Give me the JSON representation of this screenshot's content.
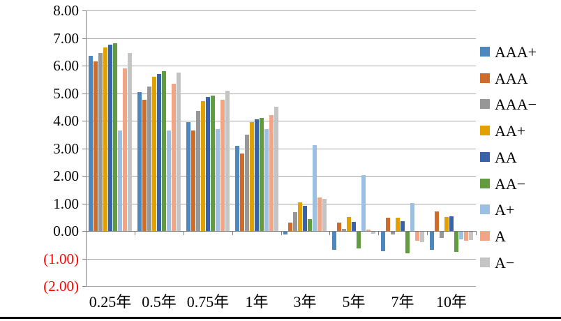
{
  "chart_data": {
    "type": "bar",
    "title": "",
    "categories": [
      "0.25年",
      "0.5年",
      "0.75年",
      "1年",
      "3年",
      "5年",
      "7年",
      "10年"
    ],
    "series": [
      {
        "name": "AAA+",
        "color": "#4E87BD",
        "values": [
          6.35,
          5.05,
          3.95,
          3.1,
          -0.1,
          -0.65,
          -0.7,
          -0.65
        ]
      },
      {
        "name": "AAA",
        "color": "#CE6C2E",
        "values": [
          6.15,
          4.75,
          3.65,
          2.8,
          0.3,
          0.3,
          0.48,
          0.7
        ]
      },
      {
        "name": "AAA−",
        "color": "#979797",
        "values": [
          6.45,
          5.25,
          4.35,
          3.5,
          0.68,
          0.08,
          -0.1,
          -0.22
        ]
      },
      {
        "name": "AA+",
        "color": "#E3A100",
        "values": [
          6.65,
          5.6,
          4.7,
          3.95,
          1.05,
          0.5,
          0.48,
          0.5
        ]
      },
      {
        "name": "AA",
        "color": "#3A62A8",
        "values": [
          6.75,
          5.7,
          4.85,
          4.05,
          0.92,
          0.33,
          0.35,
          0.53
        ]
      },
      {
        "name": "AA−",
        "color": "#639C40",
        "values": [
          6.8,
          5.8,
          4.9,
          4.1,
          0.43,
          -0.62,
          -0.78,
          -0.73
        ]
      },
      {
        "name": "A+",
        "color": "#9BC0E2",
        "values": [
          3.65,
          3.65,
          3.7,
          3.7,
          3.11,
          2.03,
          1.0,
          -0.28
        ]
      },
      {
        "name": "A",
        "color": "#F1A586",
        "values": [
          5.9,
          5.35,
          4.75,
          4.2,
          1.22,
          0.05,
          -0.33,
          -0.33
        ]
      },
      {
        "name": "A−",
        "color": "#C4C4C4",
        "values": [
          6.45,
          5.75,
          5.1,
          4.5,
          1.16,
          -0.08,
          -0.38,
          -0.3
        ]
      }
    ],
    "xlabel": "",
    "ylabel": "",
    "y_axis": {
      "min": -2,
      "max": 8,
      "step": 1,
      "tick_labels": [
        "8.00",
        "7.00",
        "6.00",
        "5.00",
        "4.00",
        "3.00",
        "2.00",
        "1.00",
        "0.00",
        "(1.00)",
        "(2.00)"
      ],
      "positive_label_color": "#000000",
      "negative_label_color": "#FF0000"
    },
    "grid": true,
    "legend_position": "right"
  },
  "colors": {
    "background": "#FFFFFF",
    "gridline": "#A6A6A6",
    "axis": "#808080",
    "bottom_rule": "#000000"
  }
}
